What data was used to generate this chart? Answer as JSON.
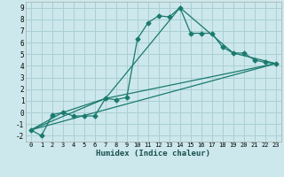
{
  "xlabel": "Humidex (Indice chaleur)",
  "background_color": "#cce8ec",
  "grid_color": "#aacfd4",
  "line_color": "#1a7a6e",
  "xlim": [
    -0.5,
    23.5
  ],
  "ylim": [
    -2.5,
    9.5
  ],
  "xticks": [
    0,
    1,
    2,
    3,
    4,
    5,
    6,
    7,
    8,
    9,
    10,
    11,
    12,
    13,
    14,
    15,
    16,
    17,
    18,
    19,
    20,
    21,
    22,
    23
  ],
  "yticks": [
    -2,
    -1,
    0,
    1,
    2,
    3,
    4,
    5,
    6,
    7,
    8,
    9
  ],
  "series1_x": [
    0,
    1,
    2,
    3,
    4,
    5,
    6,
    7,
    8,
    9,
    10,
    11,
    12,
    13,
    14,
    15,
    16,
    17,
    18,
    19,
    20,
    21,
    22,
    23
  ],
  "series1_y": [
    -1.5,
    -2,
    -0.2,
    0,
    -0.3,
    -0.3,
    -0.3,
    1.2,
    1.1,
    1.3,
    6.3,
    7.7,
    8.3,
    8.2,
    9.0,
    6.8,
    6.8,
    6.8,
    5.6,
    5.1,
    5.1,
    4.5,
    4.3,
    4.2
  ],
  "series2_x": [
    0,
    3,
    7,
    23
  ],
  "series2_y": [
    -1.5,
    0,
    1.2,
    4.2
  ],
  "series3_x": [
    0,
    23
  ],
  "series3_y": [
    -1.5,
    4.2
  ],
  "series4_x": [
    0,
    7,
    14,
    19,
    23
  ],
  "series4_y": [
    -1.5,
    1.2,
    9.0,
    5.1,
    4.2
  ]
}
